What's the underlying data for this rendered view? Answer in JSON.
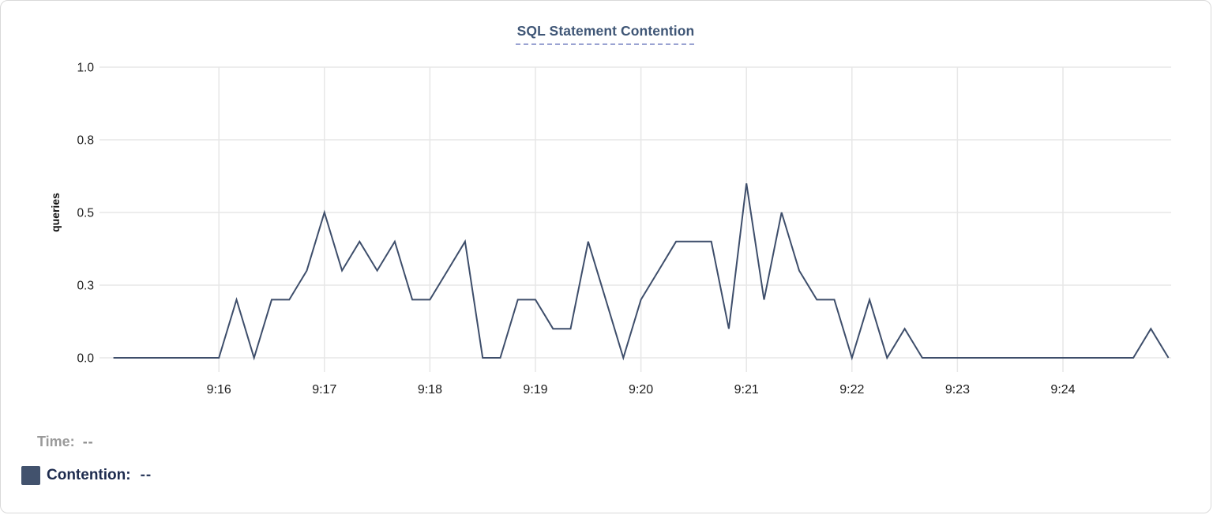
{
  "card": {
    "title": "SQL Statement Contention"
  },
  "chart_data": {
    "type": "line",
    "title": "SQL Statement Contention",
    "xlabel": "",
    "ylabel": "queries",
    "ylim": [
      0,
      1
    ],
    "grid": true,
    "legend_position": "bottom-left",
    "y_ticks": [
      {
        "value": 0.0,
        "label": "0.0"
      },
      {
        "value": 0.25,
        "label": "0.3"
      },
      {
        "value": 0.5,
        "label": "0.5"
      },
      {
        "value": 0.75,
        "label": "0.8"
      },
      {
        "value": 1.0,
        "label": "1.0"
      }
    ],
    "x_ticks": [
      "9:16",
      "9:17",
      "9:18",
      "9:19",
      "9:20",
      "9:21",
      "9:22",
      "9:23",
      "9:24"
    ],
    "x_range": [
      "9:15:00",
      "9:25:00"
    ],
    "series": [
      {
        "name": "Contention",
        "color": "#3e4e6b",
        "points": [
          [
            "9:15:00",
            0
          ],
          [
            "9:15:10",
            0
          ],
          [
            "9:15:20",
            0
          ],
          [
            "9:15:30",
            0
          ],
          [
            "9:15:40",
            0
          ],
          [
            "9:15:50",
            0
          ],
          [
            "9:16:00",
            0
          ],
          [
            "9:16:10",
            0.2
          ],
          [
            "9:16:20",
            0
          ],
          [
            "9:16:30",
            0.2
          ],
          [
            "9:16:40",
            0.2
          ],
          [
            "9:16:50",
            0.3
          ],
          [
            "9:17:00",
            0.5
          ],
          [
            "9:17:10",
            0.3
          ],
          [
            "9:17:20",
            0.4
          ],
          [
            "9:17:30",
            0.3
          ],
          [
            "9:17:40",
            0.4
          ],
          [
            "9:17:50",
            0.2
          ],
          [
            "9:18:00",
            0.2
          ],
          [
            "9:18:10",
            0.3
          ],
          [
            "9:18:20",
            0.4
          ],
          [
            "9:18:30",
            0
          ],
          [
            "9:18:40",
            0
          ],
          [
            "9:18:50",
            0.2
          ],
          [
            "9:19:00",
            0.2
          ],
          [
            "9:19:10",
            0.1
          ],
          [
            "9:19:20",
            0.1
          ],
          [
            "9:19:30",
            0.4
          ],
          [
            "9:19:40",
            0.2
          ],
          [
            "9:19:50",
            0
          ],
          [
            "9:20:00",
            0.2
          ],
          [
            "9:20:10",
            0.3
          ],
          [
            "9:20:20",
            0.4
          ],
          [
            "9:20:30",
            0.4
          ],
          [
            "9:20:40",
            0.4
          ],
          [
            "9:20:50",
            0.1
          ],
          [
            "9:21:00",
            0.6
          ],
          [
            "9:21:10",
            0.2
          ],
          [
            "9:21:20",
            0.5
          ],
          [
            "9:21:30",
            0.3
          ],
          [
            "9:21:40",
            0.2
          ],
          [
            "9:21:50",
            0.2
          ],
          [
            "9:22:00",
            0
          ],
          [
            "9:22:10",
            0.2
          ],
          [
            "9:22:20",
            0
          ],
          [
            "9:22:30",
            0.1
          ],
          [
            "9:22:40",
            0
          ],
          [
            "9:22:50",
            0
          ],
          [
            "9:23:00",
            0
          ],
          [
            "9:23:10",
            0
          ],
          [
            "9:23:20",
            0
          ],
          [
            "9:23:30",
            0
          ],
          [
            "9:23:40",
            0
          ],
          [
            "9:23:50",
            0
          ],
          [
            "9:24:00",
            0
          ],
          [
            "9:24:10",
            0
          ],
          [
            "9:24:20",
            0
          ],
          [
            "9:24:30",
            0
          ],
          [
            "9:24:40",
            0
          ],
          [
            "9:24:50",
            0.1
          ],
          [
            "9:25:00",
            0
          ]
        ]
      }
    ]
  },
  "legend": {
    "time_label": "Time:",
    "time_value": "--",
    "contention_label": "Contention:",
    "contention_value": "--",
    "swatch_color": "#42526d"
  },
  "colors": {
    "line": "#3e4e6b",
    "grid": "#e7e7e7",
    "tick_text": "#1b1b1b",
    "axis_title_text": "#111111",
    "title_text": "#3f5676",
    "title_underline": "#9aa3d2",
    "card_border": "#d9d9d9"
  }
}
